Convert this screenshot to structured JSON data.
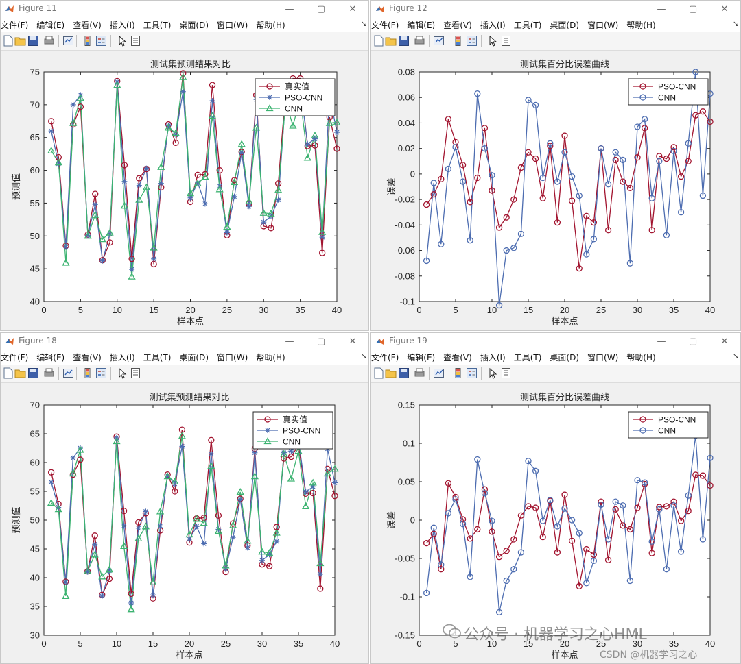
{
  "windows": [
    {
      "title": "Figure 11",
      "menus": [
        "文件(F)",
        "编辑(E)",
        "查看(V)",
        "插入(I)",
        "工具(T)",
        "桌面(D)",
        "窗口(W)",
        "帮助(H)"
      ],
      "chart_data": {
        "type": "line",
        "title": "测试集预测结果对比",
        "xlabel": "样本点",
        "ylabel": "预测值",
        "xlim": [
          0,
          40
        ],
        "ylim": [
          40,
          75
        ],
        "xticks": [
          0,
          5,
          10,
          15,
          20,
          25,
          30,
          35,
          40
        ],
        "yticks": [
          40,
          45,
          50,
          55,
          60,
          65,
          70,
          75
        ],
        "legend_position": "top-right",
        "x": [
          1,
          2,
          3,
          4,
          5,
          6,
          7,
          8,
          9,
          10,
          11,
          12,
          13,
          14,
          15,
          16,
          17,
          18,
          19,
          20,
          21,
          22,
          23,
          24,
          25,
          26,
          27,
          28,
          29,
          30,
          31,
          32,
          33,
          34,
          35,
          36,
          37,
          38,
          39,
          40
        ],
        "series": [
          {
            "name": "真实值",
            "color": "#a2142f",
            "marker": "circle",
            "values": [
              67.5,
              62,
              48.5,
              67,
              69.7,
              50.2,
              56.4,
              46.3,
              49,
              73.6,
              60.8,
              46.5,
              58.8,
              60.2,
              45.7,
              57.4,
              67,
              64.2,
              74.8,
              55.2,
              59.3,
              59.4,
              73,
              60,
              50.1,
              58.5,
              62.8,
              54.9,
              71.5,
              51.5,
              51.2,
              58,
              72,
              74,
              74,
              63.7,
              63.8,
              47.4,
              68.1,
              63.3
            ]
          },
          {
            "name": "PSO-CNN",
            "color": "#4c6cb0",
            "marker": "star",
            "values": [
              66,
              61,
              48.3,
              70,
              71.5,
              50.1,
              54.8,
              46.2,
              50.3,
              73.5,
              58.3,
              44.9,
              57.7,
              60.3,
              46.5,
              58,
              66.8,
              65.4,
              72,
              55.8,
              58.1,
              54.9,
              70.6,
              57.6,
              50.5,
              56,
              62.7,
              54.5,
              70.8,
              52.1,
              53,
              55.5,
              71,
              70,
              72.8,
              64,
              64.8,
              49.8,
              71.5,
              65.8
            ]
          },
          {
            "name": "CNN",
            "color": "#3cb371",
            "marker": "triangle",
            "values": [
              63,
              61.2,
              45.9,
              67.2,
              71,
              50,
              53.2,
              49.5,
              50.5,
              73,
              54.6,
              43.8,
              55.5,
              57.4,
              48.2,
              60.5,
              66.5,
              65.7,
              74.2,
              56.5,
              58,
              59,
              68.3,
              57.1,
              51.4,
              58.2,
              64,
              55.3,
              66.5,
              53.5,
              53.4,
              57,
              70.5,
              66.8,
              71,
              61.9,
              65.3,
              50.6,
              67.2,
              67.3
            ]
          }
        ]
      }
    },
    {
      "title": "Figure 12",
      "menus": [
        "文件(F)",
        "编辑(E)",
        "查看(V)",
        "插入(I)",
        "工具(T)",
        "桌面(D)",
        "窗口(W)",
        "帮助(H)"
      ],
      "chart_data": {
        "type": "line",
        "title": "测试集百分比误差曲线",
        "xlabel": "样本点",
        "ylabel": "误差",
        "xlim": [
          0,
          40
        ],
        "ylim": [
          -0.1,
          0.08
        ],
        "xticks": [
          0,
          5,
          10,
          15,
          20,
          25,
          30,
          35,
          40
        ],
        "yticks": [
          -0.1,
          -0.08,
          -0.06,
          -0.04,
          -0.02,
          0,
          0.02,
          0.04,
          0.06,
          0.08
        ],
        "ytick_labels": [
          "-0.1",
          "-0.08",
          "-0.06",
          "-0.04",
          "-0.02",
          "0",
          "0.02",
          "0.04",
          "0.06",
          "0.08"
        ],
        "legend_position": "top-right",
        "x": [
          1,
          2,
          3,
          4,
          5,
          6,
          7,
          8,
          9,
          10,
          11,
          12,
          13,
          14,
          15,
          16,
          17,
          18,
          19,
          20,
          21,
          22,
          23,
          24,
          25,
          26,
          27,
          28,
          29,
          30,
          31,
          32,
          33,
          34,
          35,
          36,
          37,
          38,
          39,
          40
        ],
        "series": [
          {
            "name": "PSO-CNN",
            "color": "#a2142f",
            "marker": "circle",
            "values": [
              -0.024,
              -0.016,
              -0.004,
              0.043,
              0.025,
              0.007,
              -0.022,
              -0.003,
              0.036,
              -0.013,
              -0.042,
              -0.034,
              -0.02,
              0.005,
              0.017,
              0.012,
              -0.019,
              0.022,
              -0.038,
              0.03,
              -0.021,
              -0.074,
              -0.033,
              -0.038,
              0.02,
              -0.044,
              0.011,
              -0.006,
              -0.011,
              0.013,
              0.036,
              -0.044,
              0.014,
              0.012,
              0.021,
              -0.002,
              0.01,
              0.046,
              0.049,
              0.041
            ]
          },
          {
            "name": "CNN",
            "color": "#4c6cb0",
            "marker": "circle",
            "values": [
              -0.068,
              -0.007,
              -0.055,
              0.004,
              0.021,
              -0.006,
              -0.052,
              0.063,
              0.02,
              -0.001,
              -0.103,
              -0.06,
              -0.058,
              -0.047,
              0.058,
              0.054,
              -0.003,
              0.024,
              -0.006,
              0.017,
              -0.002,
              -0.017,
              -0.063,
              -0.051,
              0.02,
              -0.008,
              0.017,
              0.011,
              -0.07,
              0.037,
              0.043,
              -0.019,
              0.01,
              -0.048,
              0.018,
              -0.03,
              0.024,
              0.08,
              -0.017,
              0.063
            ]
          }
        ]
      }
    },
    {
      "title": "Figure 18",
      "menus": [
        "文件(F)",
        "编辑(E)",
        "查看(V)",
        "插入(I)",
        "工具(T)",
        "桌面(D)",
        "窗口(W)",
        "帮助(H)"
      ],
      "chart_data": {
        "type": "line",
        "title": "测试集预测结果对比",
        "xlabel": "样本点",
        "ylabel": "预测值",
        "xlim": [
          0,
          40
        ],
        "ylim": [
          30,
          70
        ],
        "xticks": [
          0,
          5,
          10,
          15,
          20,
          25,
          30,
          35,
          40
        ],
        "yticks": [
          30,
          35,
          40,
          45,
          50,
          55,
          60,
          65,
          70
        ],
        "legend_position": "top-right",
        "x": [
          1,
          2,
          3,
          4,
          5,
          6,
          7,
          8,
          9,
          10,
          11,
          12,
          13,
          14,
          15,
          16,
          17,
          18,
          19,
          20,
          21,
          22,
          23,
          24,
          25,
          26,
          27,
          28,
          29,
          30,
          31,
          32,
          33,
          34,
          35,
          36,
          37,
          38,
          39,
          40
        ],
        "series": [
          {
            "name": "真实值",
            "color": "#a2142f",
            "marker": "circle",
            "values": [
              58.3,
              52.8,
              39.3,
              57.9,
              60.5,
              41.1,
              47.3,
              37,
              39.8,
              64.5,
              51.6,
              37.2,
              49.6,
              51.2,
              36.4,
              48.2,
              57.9,
              55,
              65.7,
              46.1,
              50.3,
              50.4,
              63.9,
              50.8,
              41,
              49.4,
              53.7,
              45.6,
              62.4,
              42.3,
              42,
              48.8,
              60.7,
              61,
              63,
              54.6,
              54.7,
              38.1,
              58.9,
              54.2
            ]
          },
          {
            "name": "PSO-CNN",
            "color": "#4c6cb0",
            "marker": "star",
            "values": [
              56.6,
              52.2,
              39.2,
              60.8,
              62.5,
              41,
              45.8,
              36.8,
              41.2,
              64.3,
              49,
              35.6,
              48.6,
              51.5,
              37,
              49,
              57.7,
              56.3,
              62.8,
              46.7,
              48.9,
              45.9,
              61.5,
              48.4,
              41.5,
              47,
              53.6,
              45.2,
              61.7,
              43,
              44,
              46.3,
              61.7,
              62,
              63.9,
              54.9,
              55.8,
              40.6,
              62.4,
              56.5
            ]
          },
          {
            "name": "CNN",
            "color": "#3cb371",
            "marker": "triangle",
            "values": [
              53,
              51.9,
              36.8,
              58.1,
              62.2,
              41.1,
              44,
              40.2,
              41.4,
              63.7,
              45.5,
              34.5,
              46.8,
              48.9,
              39.2,
              51.5,
              57.6,
              56.7,
              64.6,
              47.5,
              50.2,
              49.5,
              59.4,
              48.1,
              42.1,
              49.1,
              54.9,
              46.4,
              57.6,
              44.5,
              44.3,
              47.8,
              61.5,
              57.2,
              62,
              52.4,
              56.5,
              42.5,
              58.1,
              58.9
            ]
          }
        ]
      }
    },
    {
      "title": "Figure 19",
      "menus": [
        "文件(F)",
        "编辑(E)",
        "查看(V)",
        "插入(I)",
        "工具(T)",
        "桌面(D)",
        "窗口(W)",
        "帮助(H)"
      ],
      "chart_data": {
        "type": "line",
        "title": "测试集百分比误差曲线",
        "xlabel": "样本点",
        "ylabel": "误差",
        "xlim": [
          0,
          40
        ],
        "ylim": [
          -0.15,
          0.15
        ],
        "xticks": [
          0,
          5,
          10,
          15,
          20,
          25,
          30,
          35,
          40
        ],
        "yticks": [
          -0.15,
          -0.1,
          -0.05,
          0,
          0.05,
          0.1,
          0.15
        ],
        "ytick_labels": [
          "-0.15",
          "-0.1",
          "-0.05",
          "0",
          "0.05",
          "0.1",
          "0.15"
        ],
        "legend_position": "top-right",
        "x": [
          1,
          2,
          3,
          4,
          5,
          6,
          7,
          8,
          9,
          10,
          11,
          12,
          13,
          14,
          15,
          16,
          17,
          18,
          19,
          20,
          21,
          22,
          23,
          24,
          25,
          26,
          27,
          28,
          29,
          30,
          31,
          32,
          33,
          34,
          35,
          36,
          37,
          38,
          39,
          40
        ],
        "series": [
          {
            "name": "PSO-CNN",
            "color": "#a2142f",
            "marker": "circle",
            "values": [
              -0.03,
              -0.018,
              -0.064,
              0.048,
              0.03,
              0.001,
              -0.024,
              -0.012,
              0.04,
              -0.015,
              -0.048,
              -0.04,
              -0.025,
              0.006,
              0.018,
              0.016,
              -0.022,
              0.025,
              -0.042,
              0.033,
              -0.027,
              -0.086,
              -0.038,
              -0.045,
              0.024,
              -0.052,
              0.014,
              -0.007,
              -0.012,
              0.016,
              0.047,
              -0.043,
              0.017,
              0.018,
              0.024,
              -0.001,
              0.012,
              0.059,
              0.058,
              0.045
            ]
          },
          {
            "name": "CNN",
            "color": "#4c6cb0",
            "marker": "circle",
            "values": [
              -0.095,
              -0.01,
              -0.058,
              0.009,
              0.027,
              -0.005,
              -0.074,
              0.079,
              0.035,
              -0.001,
              -0.12,
              -0.079,
              -0.064,
              -0.042,
              0.077,
              0.064,
              -0.001,
              0.026,
              -0.008,
              0.015,
              0,
              -0.017,
              -0.082,
              -0.053,
              0.02,
              -0.025,
              0.024,
              0.019,
              -0.079,
              0.052,
              0.049,
              -0.028,
              0.014,
              -0.064,
              0.019,
              -0.041,
              0.032,
              0.11,
              -0.025,
              0.081
            ]
          }
        ]
      }
    }
  ],
  "watermark": {
    "text": "公众号 · 机器学习之心HML",
    "credit": "CSDN @机器学习之心"
  }
}
